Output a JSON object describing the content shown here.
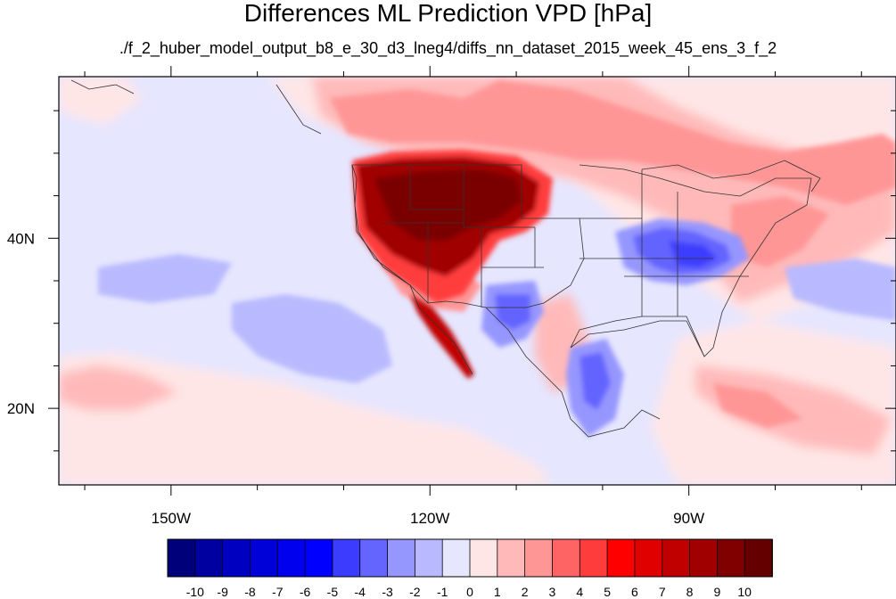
{
  "title": "Differences ML Prediction VPD [hPa]",
  "subtitle": "./f_2_huber_model_output_b8_e_30_d3_lneg4/diffs_nn_dataset_2015_week_45_ens_3_f_2",
  "map": {
    "lon_range": [
      -163,
      -66
    ],
    "lat_range": [
      11,
      59
    ],
    "x_ticks": [
      {
        "lon": -150,
        "label": "150W"
      },
      {
        "lon": -120,
        "label": "120W"
      },
      {
        "lon": -90,
        "label": "90W"
      }
    ],
    "y_ticks": [
      {
        "lat": 40,
        "label": "40N"
      },
      {
        "lat": 20,
        "label": "20N"
      }
    ],
    "minor_x": [
      -160,
      -140,
      -130,
      -110,
      -100,
      -80,
      -70
    ],
    "minor_y": [
      15,
      25,
      30,
      35,
      45,
      50,
      55
    ]
  },
  "colorbar": {
    "labels": [
      "-10",
      "-9",
      "-8",
      "-7",
      "-6",
      "-5",
      "-4",
      "-3",
      "-2",
      "-1",
      "0",
      "1",
      "2",
      "3",
      "4",
      "5",
      "6",
      "7",
      "8",
      "9",
      "10"
    ],
    "colors": [
      "#00007a",
      "#0000a0",
      "#0000c0",
      "#0000d8",
      "#0000ee",
      "#0000ff",
      "#3c3cff",
      "#6464ff",
      "#9696ff",
      "#b9b9ff",
      "#e6e6ff",
      "#ffe6e6",
      "#ffb9b9",
      "#ff9696",
      "#ff6464",
      "#ff3c3c",
      "#ff0000",
      "#e00000",
      "#c00000",
      "#a00000",
      "#800000",
      "#640000"
    ]
  }
}
